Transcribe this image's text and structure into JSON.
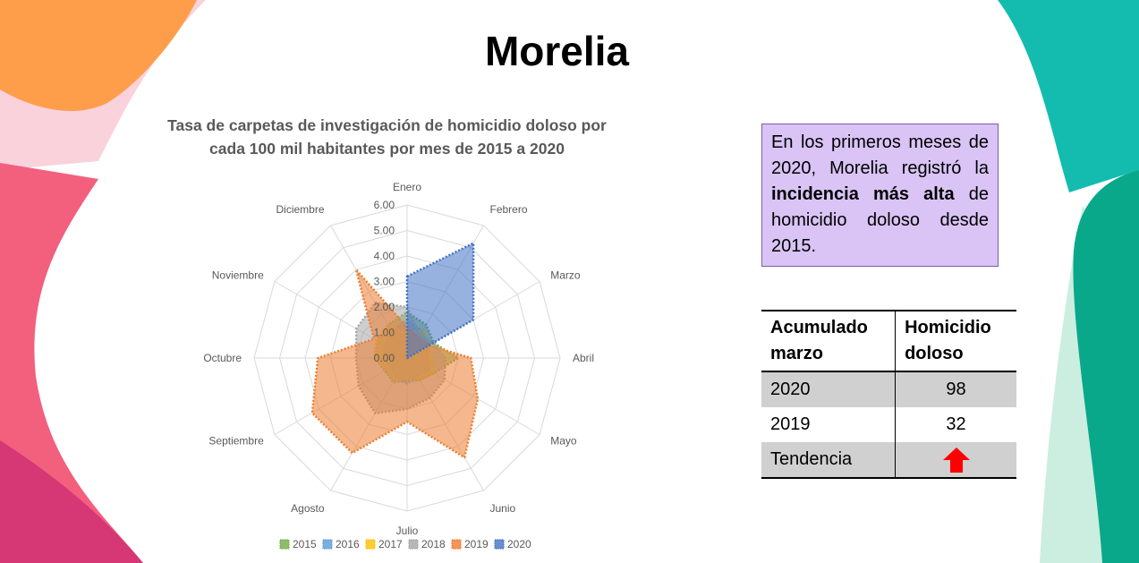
{
  "slide": {
    "title": "Morelia",
    "chart_title_line1": "Tasa de carpetas de investigación de homicidio doloso por",
    "chart_title_line2": "cada 100 mil habitantes por mes de 2015 a 2020"
  },
  "note": {
    "part1": "En los primeros meses de 2020, Morelia registró la ",
    "bold": "incidencia más alta",
    "part2": " de homicidio doloso desde 2015."
  },
  "table": {
    "col1_header_line1": "Acumulado",
    "col1_header_line2": "marzo",
    "col2_header_line1": "Homicidio",
    "col2_header_line2": "doloso",
    "rows": [
      {
        "label": "2020",
        "value": "98"
      },
      {
        "label": "2019",
        "value": "32"
      },
      {
        "label": "Tendencia",
        "value": ""
      }
    ],
    "trend_icon": "up-arrow-icon",
    "trend_color": "#ff0000"
  },
  "colors": {
    "shape_orange": "#ff9e4a",
    "shape_pink": "#fad2dc",
    "shape_magenta": "#f2607e",
    "shape_crimson": "#d63775",
    "shape_teal": "#14bcb0",
    "shape_green": "#0aa88a",
    "shape_mint": "#cbeee0"
  },
  "chart_data": {
    "type": "radar",
    "title": "Tasa de carpetas de investigación de homicidio doloso por cada 100 mil habitantes por mes de 2015 a 2020",
    "categories": [
      "Enero",
      "Febrero",
      "Marzo",
      "Abril",
      "Mayo",
      "Junio",
      "Julio",
      "Agosto",
      "Septiembre",
      "Octubre",
      "Noviembre",
      "Diciembre"
    ],
    "rlim": [
      0,
      6
    ],
    "tick_values": [
      0,
      1,
      2,
      3,
      4,
      5,
      6
    ],
    "tick_labels": [
      "0.00",
      "1.00",
      "2.00",
      "3.00",
      "4.00",
      "5.00",
      "6.00"
    ],
    "legend_position": "bottom",
    "series": [
      {
        "name": "2015",
        "color": "#70ad47",
        "values": [
          1.8,
          1.5,
          1.2,
          2.0,
          1.2,
          1.0,
          0.9,
          1.1,
          1.0,
          1.3,
          1.3,
          1.5
        ]
      },
      {
        "name": "2016",
        "color": "#5b9bd5",
        "values": [
          1.5,
          1.2,
          1.0,
          0.8,
          1.0,
          0.8,
          1.0,
          0.9,
          0.7,
          0.9,
          1.0,
          1.2
        ]
      },
      {
        "name": "2017",
        "color": "#ffc000",
        "values": [
          1.0,
          1.3,
          1.0,
          1.0,
          1.2,
          1.0,
          0.8,
          1.0,
          0.9,
          1.3,
          1.4,
          1.5
        ]
      },
      {
        "name": "2018",
        "color": "#a5a5a5",
        "values": [
          2.0,
          1.0,
          1.2,
          1.5,
          1.7,
          1.8,
          2.0,
          2.5,
          2.2,
          2.0,
          2.3,
          2.5
        ]
      },
      {
        "name": "2019",
        "color": "#ed7d31",
        "values": [
          1.2,
          0.9,
          1.0,
          2.5,
          3.2,
          4.5,
          2.5,
          4.3,
          4.3,
          3.5,
          1.5,
          4.0
        ]
      },
      {
        "name": "2020",
        "color": "#4472c4",
        "values": [
          3.2,
          5.2,
          3.0,
          0.0,
          0.0,
          0.0,
          0.0,
          0.0,
          0.0,
          0.0,
          0.0,
          0.0
        ]
      }
    ]
  }
}
